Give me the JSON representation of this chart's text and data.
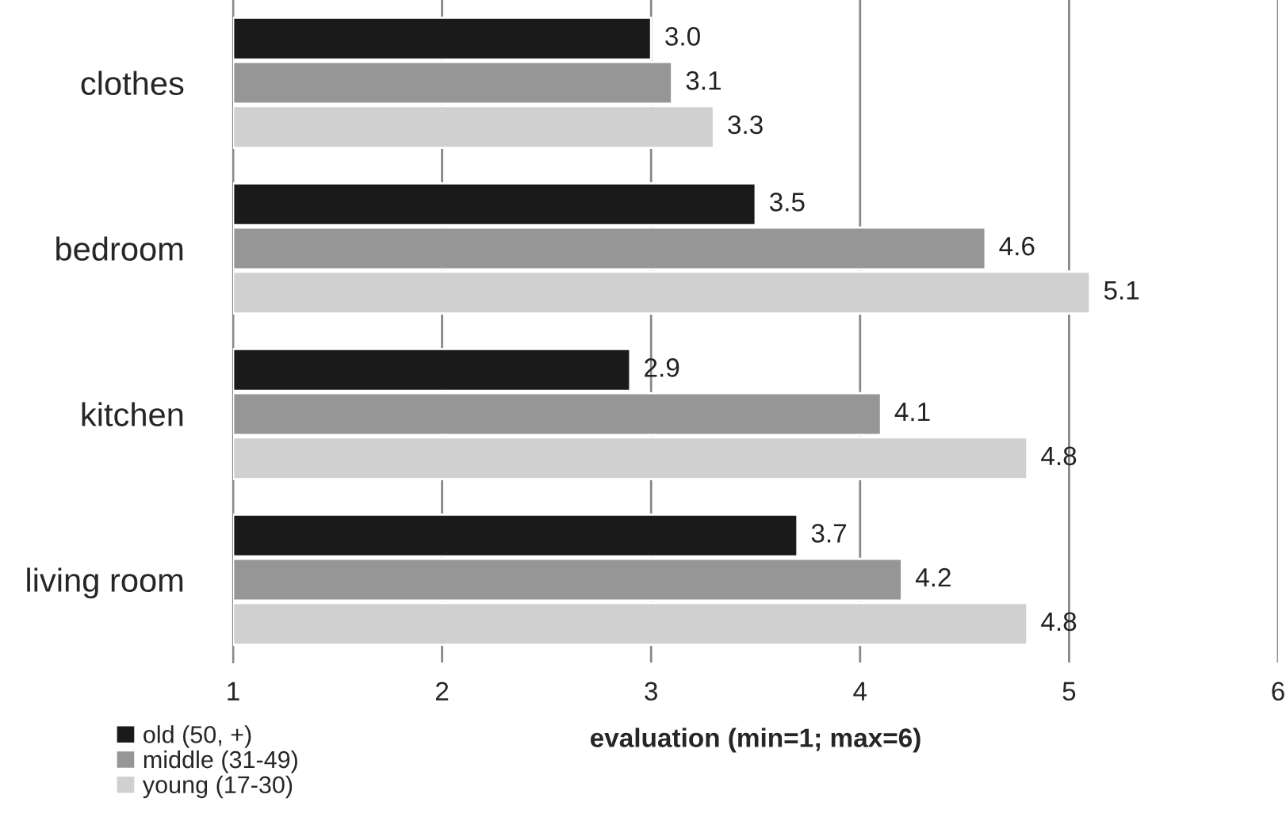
{
  "chart_data": {
    "type": "bar",
    "orientation": "horizontal",
    "categories": [
      "clothes",
      "bedroom",
      "kitchen",
      "living room"
    ],
    "series": [
      {
        "name": "old (50, +)",
        "color": "#1a1a1a",
        "values": [
          3.0,
          3.5,
          2.9,
          3.7
        ],
        "value_labels": [
          "3.0",
          "3.5",
          "2.9",
          "3.7"
        ]
      },
      {
        "name": "middle (31-49)",
        "color": "#969696",
        "values": [
          3.1,
          4.6,
          4.1,
          4.2
        ],
        "value_labels": [
          "3.1",
          "4.6",
          "4.1",
          "4.2"
        ]
      },
      {
        "name": "young (17-30)",
        "color": "#d0d0d0",
        "values": [
          3.3,
          5.1,
          4.8,
          4.8
        ],
        "value_labels": [
          "3.3",
          "5.1",
          "4.8",
          "4.8"
        ]
      }
    ],
    "xlabel": "evaluation (min=1; max=6)",
    "xlim": [
      1,
      6
    ],
    "xticks": [
      1,
      2,
      3,
      4,
      5,
      6
    ],
    "grid": "x",
    "legend": "bottom left"
  }
}
